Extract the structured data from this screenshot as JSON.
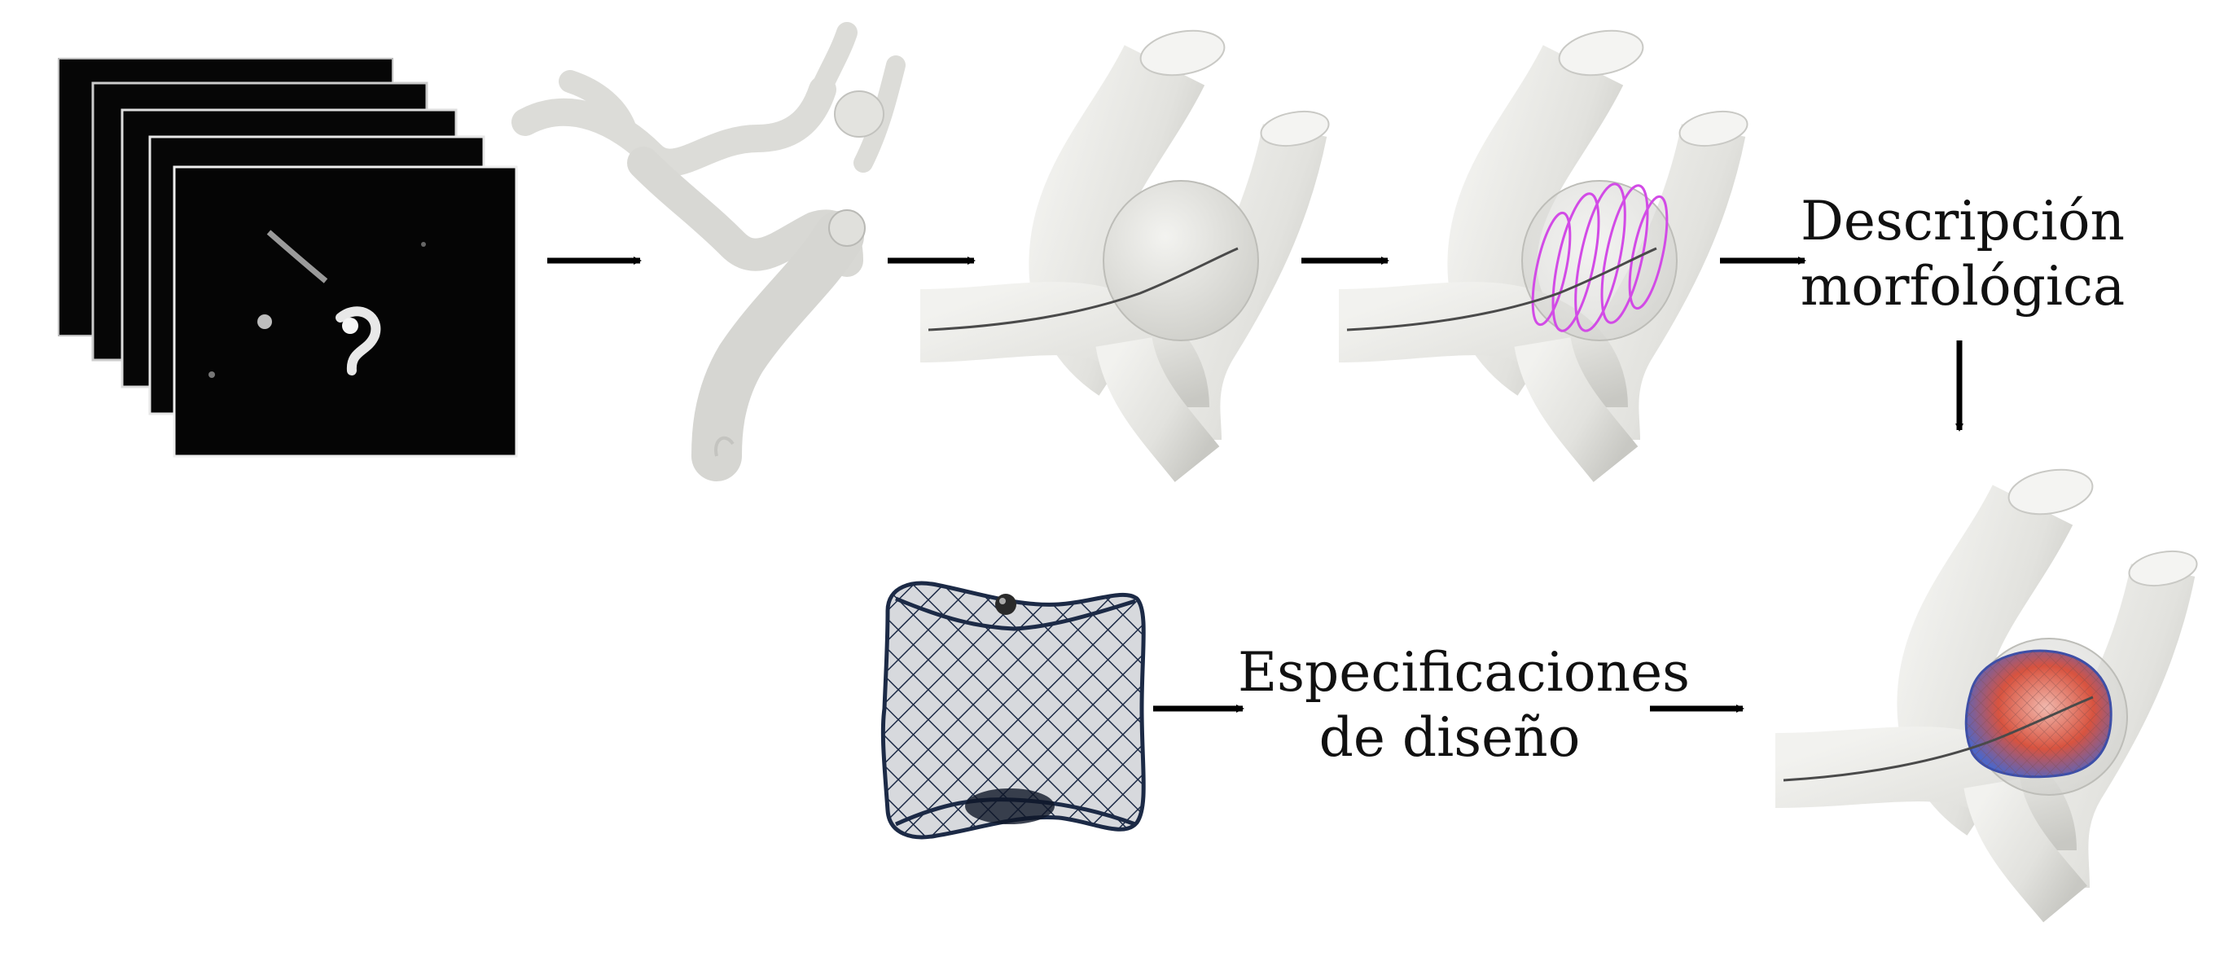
{
  "steps": {
    "morphology": {
      "line1": "Descripción",
      "line2": "morfológica"
    },
    "design": {
      "line1": "Especificaciones",
      "line2": "de diseño"
    }
  },
  "colors": {
    "vessel": "#e6e6e3",
    "vessel_shade": "#c9c9c5",
    "centerline": "#4a4a4a",
    "rings": "#d24be6",
    "device_mesh": "#1c2a46",
    "imaging_bg": "#070707",
    "deformed_red": "#d8533f",
    "deformed_blue": "#4d66c8",
    "arrow": "#000000"
  },
  "icons": [
    "image-stack-icon",
    "segmented-vasculature-icon",
    "aneurysm-centerline-icon",
    "aneurysm-rings-icon",
    "device-mesh-icon",
    "deployed-device-icon"
  ]
}
